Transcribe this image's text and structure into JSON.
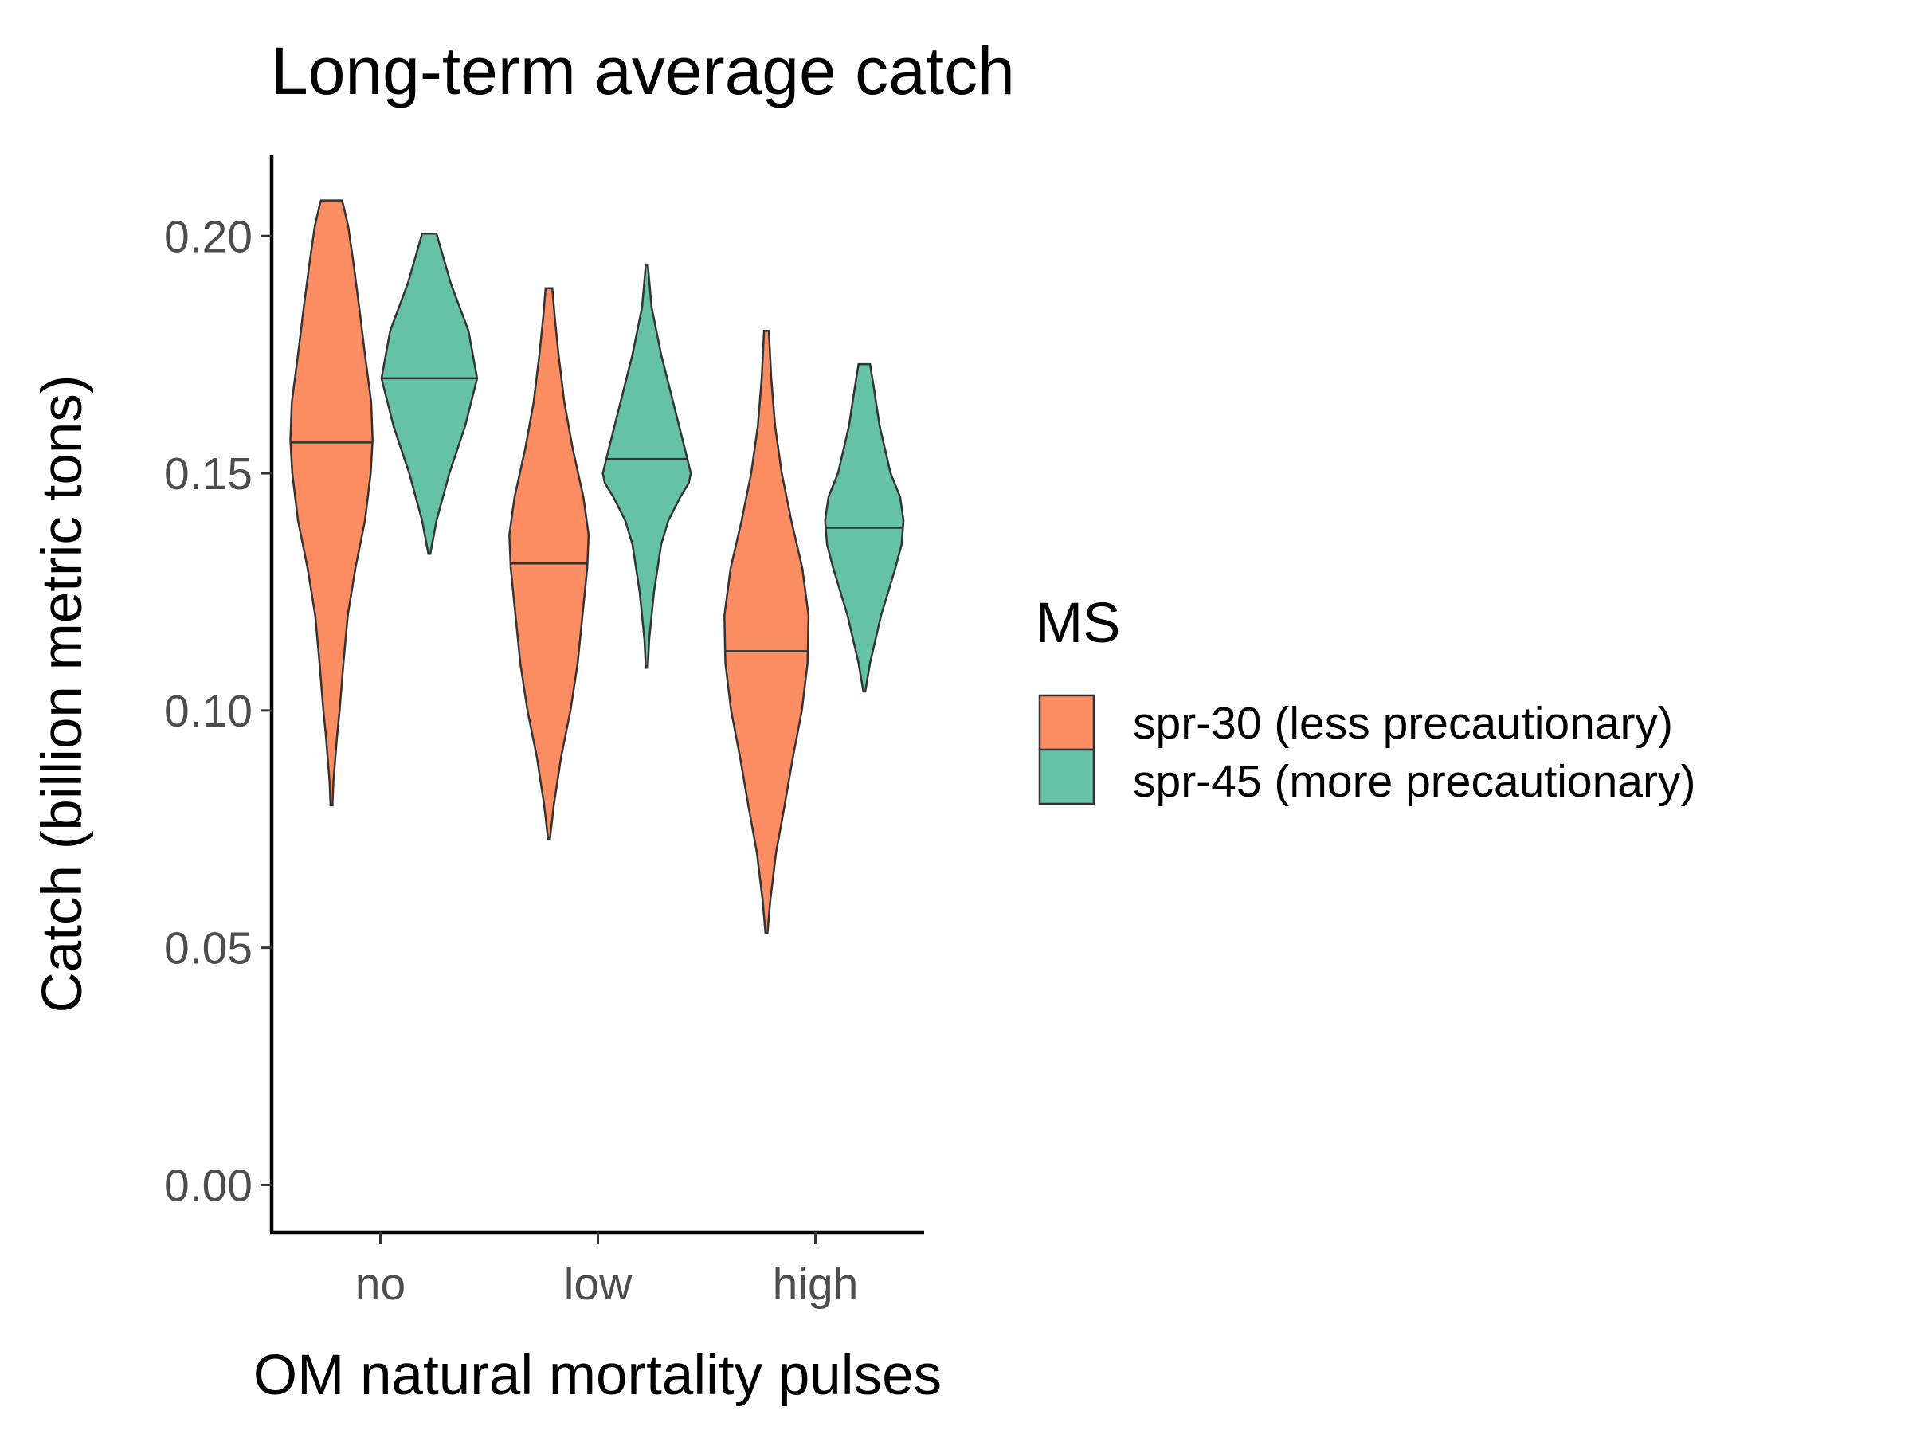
{
  "chart_data": {
    "type": "violin",
    "title": "Long-term average catch",
    "xlabel": "OM natural mortality pulses",
    "ylabel": "Catch (billion metric tons)",
    "categories": [
      "no",
      "low",
      "high"
    ],
    "ylim": [
      -0.01,
      0.217
    ],
    "yticks": [
      0.0,
      0.05,
      0.1,
      0.15,
      0.2
    ],
    "ytick_labels": [
      "0.00",
      "0.05",
      "0.10",
      "0.15",
      "0.20"
    ],
    "grid": false,
    "legend": {
      "title": "MS",
      "position": "right",
      "entries": [
        {
          "label": "spr-30 (less precautionary)",
          "color": "#fc8d62"
        },
        {
          "label": "spr-45 (more precautionary)",
          "color": "#66c2a5"
        }
      ]
    },
    "series": [
      {
        "legend_index": 0,
        "color": "#fc8d62",
        "violins": [
          {
            "category": "no",
            "min": 0.08,
            "max": 0.2075,
            "median": 0.1565,
            "profile": [
              [
                0.08,
                0.0
              ],
              [
                0.085,
                0.04
              ],
              [
                0.09,
                0.08
              ],
              [
                0.095,
                0.12
              ],
              [
                0.1,
                0.17
              ],
              [
                0.11,
                0.25
              ],
              [
                0.12,
                0.34
              ],
              [
                0.13,
                0.5
              ],
              [
                0.14,
                0.7
              ],
              [
                0.15,
                0.82
              ],
              [
                0.157,
                0.86
              ],
              [
                0.165,
                0.83
              ],
              [
                0.175,
                0.7
              ],
              [
                0.185,
                0.58
              ],
              [
                0.195,
                0.45
              ],
              [
                0.202,
                0.35
              ],
              [
                0.206,
                0.26
              ],
              [
                0.2075,
                0.22
              ]
            ]
          },
          {
            "category": "low",
            "min": 0.073,
            "max": 0.189,
            "median": 0.131,
            "profile": [
              [
                0.073,
                0.0
              ],
              [
                0.08,
                0.1
              ],
              [
                0.09,
                0.25
              ],
              [
                0.1,
                0.45
              ],
              [
                0.11,
                0.6
              ],
              [
                0.12,
                0.7
              ],
              [
                0.13,
                0.8
              ],
              [
                0.137,
                0.83
              ],
              [
                0.145,
                0.72
              ],
              [
                0.155,
                0.5
              ],
              [
                0.165,
                0.32
              ],
              [
                0.175,
                0.2
              ],
              [
                0.183,
                0.12
              ],
              [
                0.189,
                0.07
              ]
            ]
          },
          {
            "category": "high",
            "min": 0.053,
            "max": 0.18,
            "median": 0.1125,
            "profile": [
              [
                0.053,
                0.0
              ],
              [
                0.06,
                0.08
              ],
              [
                0.07,
                0.2
              ],
              [
                0.08,
                0.38
              ],
              [
                0.09,
                0.55
              ],
              [
                0.1,
                0.74
              ],
              [
                0.11,
                0.86
              ],
              [
                0.12,
                0.88
              ],
              [
                0.13,
                0.75
              ],
              [
                0.14,
                0.52
              ],
              [
                0.15,
                0.32
              ],
              [
                0.16,
                0.18
              ],
              [
                0.17,
                0.1
              ],
              [
                0.18,
                0.05
              ]
            ]
          }
        ]
      },
      {
        "legend_index": 1,
        "color": "#66c2a5",
        "violins": [
          {
            "category": "no",
            "min": 0.133,
            "max": 0.2005,
            "median": 0.17,
            "profile": [
              [
                0.133,
                0.0
              ],
              [
                0.14,
                0.15
              ],
              [
                0.15,
                0.42
              ],
              [
                0.16,
                0.75
              ],
              [
                0.17,
                1.0
              ],
              [
                0.18,
                0.82
              ],
              [
                0.19,
                0.45
              ],
              [
                0.197,
                0.25
              ],
              [
                0.2005,
                0.15
              ]
            ]
          },
          {
            "category": "low",
            "min": 0.109,
            "max": 0.194,
            "median": 0.153,
            "profile": [
              [
                0.109,
                0.0
              ],
              [
                0.115,
                0.05
              ],
              [
                0.125,
                0.15
              ],
              [
                0.135,
                0.3
              ],
              [
                0.14,
                0.45
              ],
              [
                0.145,
                0.7
              ],
              [
                0.148,
                0.88
              ],
              [
                0.15,
                0.92
              ],
              [
                0.155,
                0.8
              ],
              [
                0.165,
                0.55
              ],
              [
                0.175,
                0.3
              ],
              [
                0.185,
                0.1
              ],
              [
                0.194,
                0.0
              ]
            ]
          },
          {
            "category": "high",
            "min": 0.104,
            "max": 0.173,
            "median": 0.1385,
            "profile": [
              [
                0.104,
                0.0
              ],
              [
                0.11,
                0.12
              ],
              [
                0.12,
                0.35
              ],
              [
                0.13,
                0.65
              ],
              [
                0.135,
                0.78
              ],
              [
                0.14,
                0.82
              ],
              [
                0.145,
                0.75
              ],
              [
                0.15,
                0.55
              ],
              [
                0.16,
                0.32
              ],
              [
                0.168,
                0.2
              ],
              [
                0.173,
                0.12
              ]
            ]
          }
        ]
      }
    ]
  }
}
